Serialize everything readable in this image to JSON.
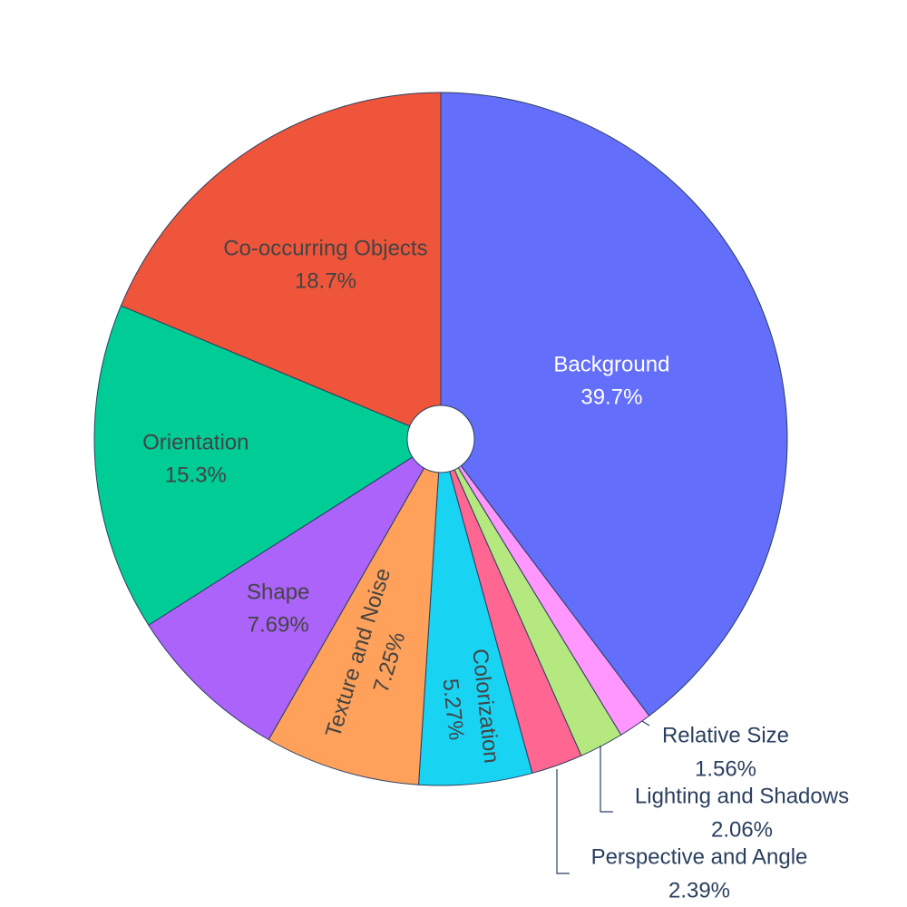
{
  "chart_data": {
    "type": "pie",
    "hole": true,
    "direction": "clockwise",
    "labels": [
      "Background",
      "Relative Size",
      "Lighting and Shadows",
      "Perspective and Angle",
      "Colorization",
      "Texture and Noise",
      "Shape",
      "Orientation",
      "Co-occurring Objects"
    ],
    "values": [
      39.7,
      1.56,
      2.06,
      2.39,
      5.27,
      7.25,
      7.69,
      15.3,
      18.7
    ],
    "percent_labels": [
      "39.7%",
      "1.56%",
      "2.06%",
      "2.39%",
      "5.27%",
      "7.25%",
      "7.69%",
      "15.3%",
      "18.7%"
    ],
    "colors": [
      "#636efa",
      "#ff97ff",
      "#b6e880",
      "#ff6692",
      "#19d3f3",
      "#ffa15a",
      "#ab63fa",
      "#00cc96",
      "#ef553b"
    ],
    "label_colors": [
      "#ffffff",
      "#2a3f5f",
      "#2a3f5f",
      "#2a3f5f",
      "#444444",
      "#444444",
      "#444444",
      "#444444",
      "#444444"
    ]
  }
}
